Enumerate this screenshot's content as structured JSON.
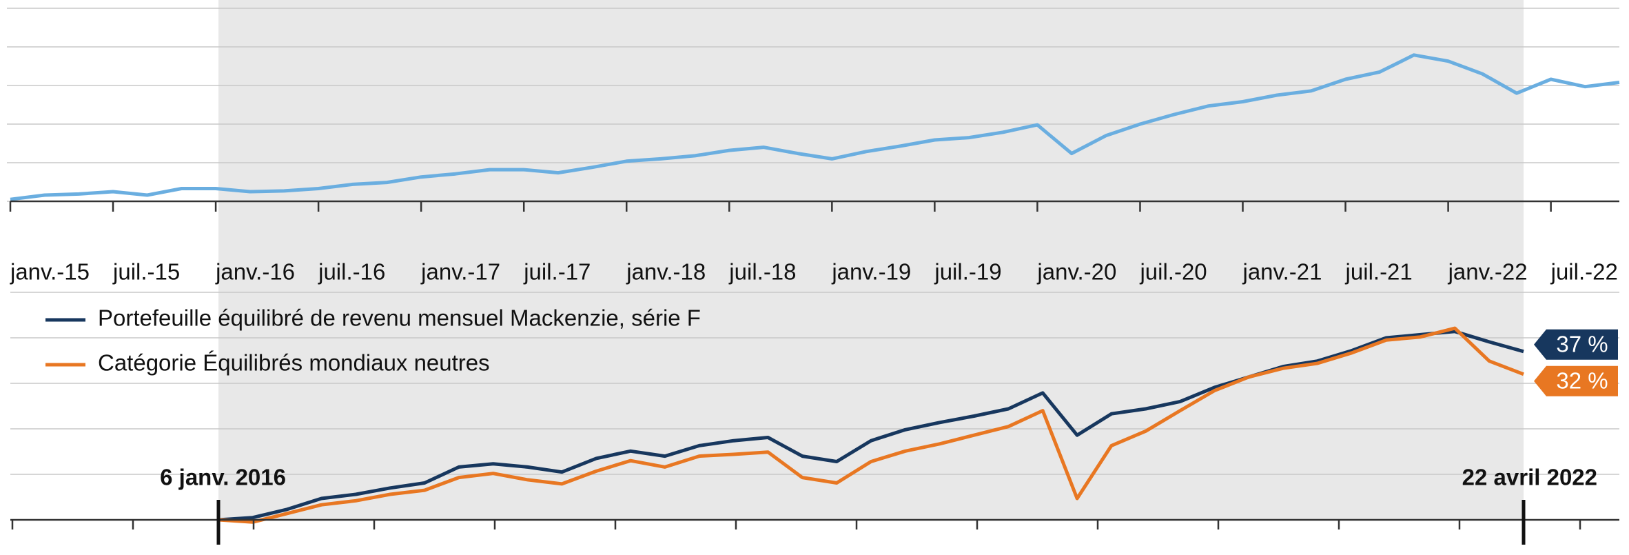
{
  "chart_data": [
    {
      "type": "line",
      "categories": [
        "janv.-15",
        null,
        null,
        "juil.-15",
        null,
        null,
        "janv.-16",
        null,
        null,
        "juil.-16",
        null,
        null,
        "janv.-17",
        null,
        null,
        "juil.-17",
        null,
        null,
        "janv.-18",
        null,
        null,
        "juil.-18",
        null,
        null,
        "janv.-19",
        null,
        null,
        "juil.-19",
        null,
        null,
        "janv.-20",
        null,
        null,
        "juil.-20",
        null,
        null,
        "janv.-21",
        null,
        null,
        "juil.-21",
        null,
        null,
        "janv.-22",
        null,
        null,
        "juil.-22",
        null,
        null
      ],
      "series": [
        {
          "color": "#6aaee0",
          "values": [
            0.05,
            0.16,
            0.19,
            0.25,
            0.16,
            0.33,
            0.33,
            0.25,
            0.27,
            0.33,
            0.44,
            0.49,
            0.63,
            0.71,
            0.82,
            0.82,
            0.74,
            0.88,
            1.04,
            1.1,
            1.18,
            1.32,
            1.4,
            1.24,
            1.1,
            1.29,
            1.43,
            1.59,
            1.65,
            1.79,
            1.98,
            1.24,
            1.7,
            2.0,
            2.25,
            2.47,
            2.58,
            2.75,
            2.86,
            3.16,
            3.35,
            3.79,
            3.63,
            3.3,
            2.8,
            3.16,
            2.97,
            3.08
          ]
        }
      ],
      "ylim": [
        0,
        5
      ],
      "yticks": [
        0,
        1,
        2,
        3,
        4,
        5
      ],
      "grid": true
    },
    {
      "type": "line",
      "categories": [
        "6 janv. 2016",
        null,
        null,
        null,
        null,
        null,
        null,
        null,
        null,
        null,
        null,
        null,
        null,
        null,
        null,
        null,
        null,
        null,
        null,
        null,
        null,
        null,
        null,
        null,
        null,
        null,
        null,
        null,
        null,
        null,
        null,
        null,
        null,
        null,
        null,
        null,
        null,
        null,
        "22 avril 2022"
      ],
      "series": [
        {
          "name": "Portefeuille équilibré de revenu mensuel Mackenzie, série F",
          "color": "#17375e",
          "end_label": "37 %",
          "values": [
            0,
            0.5,
            2.3,
            4.7,
            5.6,
            7.0,
            8.1,
            11.6,
            12.3,
            11.6,
            10.5,
            13.5,
            15.1,
            14.0,
            16.3,
            17.4,
            18.1,
            14.0,
            12.8,
            17.4,
            19.8,
            21.4,
            22.8,
            24.4,
            27.9,
            18.6,
            23.3,
            24.4,
            26.0,
            29.1,
            31.4,
            33.7,
            34.9,
            37.2,
            40.0,
            40.7,
            41.4,
            39.1,
            37
          ]
        },
        {
          "name": "Catégorie Équilibrés mondiaux neutres",
          "color": "#e87722",
          "end_label": "32 %",
          "values": [
            0,
            -0.5,
            1.4,
            3.3,
            4.2,
            5.6,
            6.5,
            9.3,
            10.2,
            8.8,
            7.9,
            10.7,
            13.0,
            11.6,
            14.0,
            14.4,
            14.9,
            9.3,
            8.1,
            12.8,
            15.1,
            16.7,
            18.6,
            20.5,
            24.0,
            4.7,
            16.3,
            19.5,
            24.0,
            28.4,
            31.4,
            33.3,
            34.4,
            36.7,
            39.5,
            40.2,
            42.1,
            34.9,
            32
          ]
        }
      ],
      "ylim": [
        -5,
        50
      ],
      "yticks": [
        0,
        10,
        20,
        30,
        40,
        50
      ],
      "grid": true
    }
  ]
}
